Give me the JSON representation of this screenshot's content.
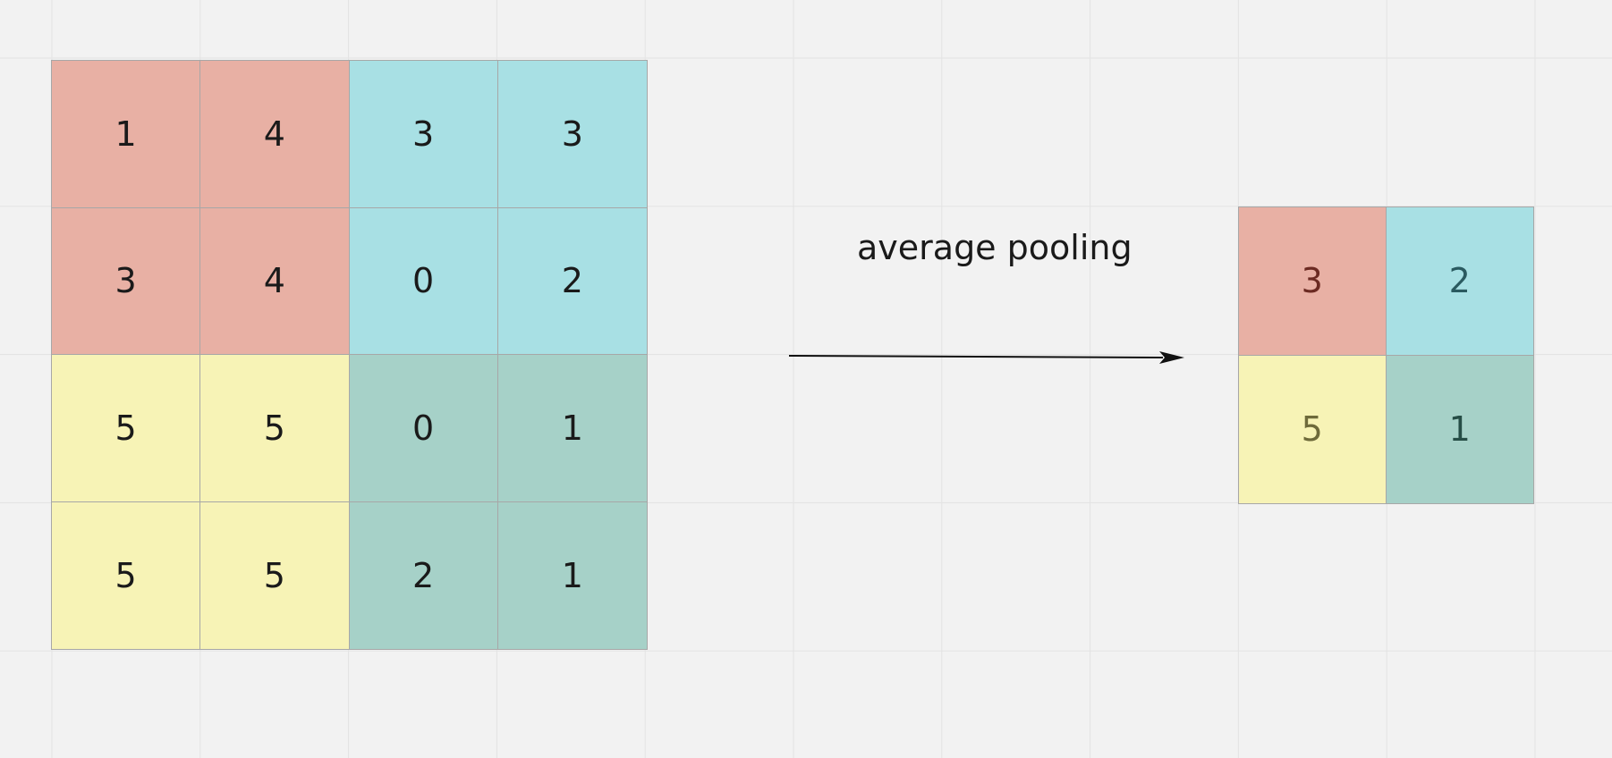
{
  "input_matrix": {
    "rows": [
      [
        "1",
        "4",
        "3",
        "3"
      ],
      [
        "3",
        "4",
        "0",
        "2"
      ],
      [
        "5",
        "5",
        "0",
        "1"
      ],
      [
        "5",
        "5",
        "2",
        "1"
      ]
    ]
  },
  "operation_label": "average pooling",
  "output_matrix": {
    "rows": [
      [
        "3",
        "2"
      ],
      [
        "5",
        "1"
      ]
    ]
  },
  "colors": {
    "top_left_region": "#e8b0a4",
    "top_right_region": "#a8e0e4",
    "bottom_left_region": "#f7f3b6",
    "bottom_right_region": "#a6d1c8",
    "background": "#f2f2f2",
    "grid_line": "#e3e3e3"
  }
}
